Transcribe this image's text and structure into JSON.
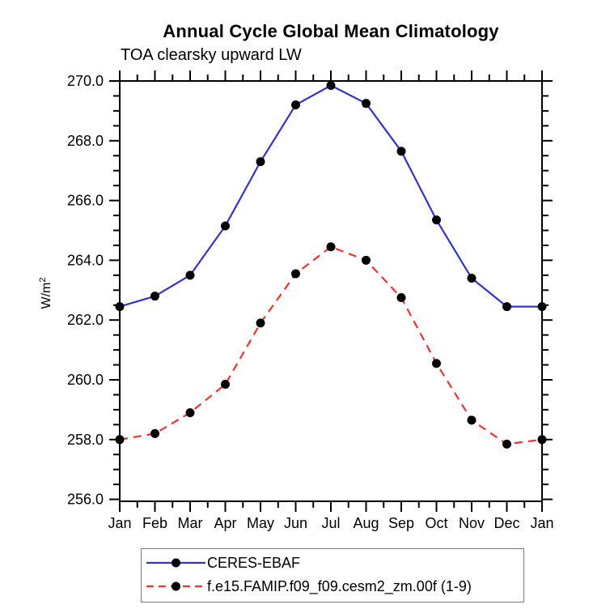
{
  "title": "Annual Cycle Global Mean Climatology",
  "subtitle": "TOA clearsky upward LW",
  "chart_data": {
    "type": "line",
    "title": "Annual Cycle Global Mean Climatology",
    "subtitle": "TOA clearsky upward LW",
    "ylabel": "W/m2",
    "ylabel_display": {
      "base": "W/m",
      "sup": "2"
    },
    "x_categories": [
      "Jan",
      "Feb",
      "Mar",
      "Apr",
      "May",
      "Jun",
      "Jul",
      "Aug",
      "Sep",
      "Oct",
      "Nov",
      "Dec",
      "Jan"
    ],
    "ylim": [
      256.0,
      270.0
    ],
    "ytick_interval": 2.0,
    "yminor_interval": 0.5,
    "ytick_labels": [
      "256.0",
      "258.0",
      "260.0",
      "262.0",
      "264.0",
      "266.0",
      "268.0",
      "270.0"
    ],
    "grid": false,
    "legend_position": "bottom",
    "axis_color": "#000000",
    "marker_color": "#000000",
    "series": [
      {
        "name": "CERES-EBAF",
        "color": "#3333cc",
        "line_style": "solid",
        "marker": "filled-circle",
        "values": [
          262.45,
          262.8,
          263.5,
          265.15,
          267.3,
          269.2,
          269.85,
          269.25,
          267.65,
          265.35,
          263.4,
          262.45,
          262.45
        ]
      },
      {
        "name": "f.e15.FAMIP.f09_f09.cesm2_zm.00f (1-9)",
        "color": "#ee3333",
        "line_style": "dashed",
        "marker": "filled-circle",
        "values": [
          258.0,
          258.2,
          258.9,
          259.85,
          261.9,
          263.55,
          264.45,
          264.0,
          262.75,
          260.55,
          258.65,
          257.85,
          258.0
        ]
      }
    ]
  }
}
